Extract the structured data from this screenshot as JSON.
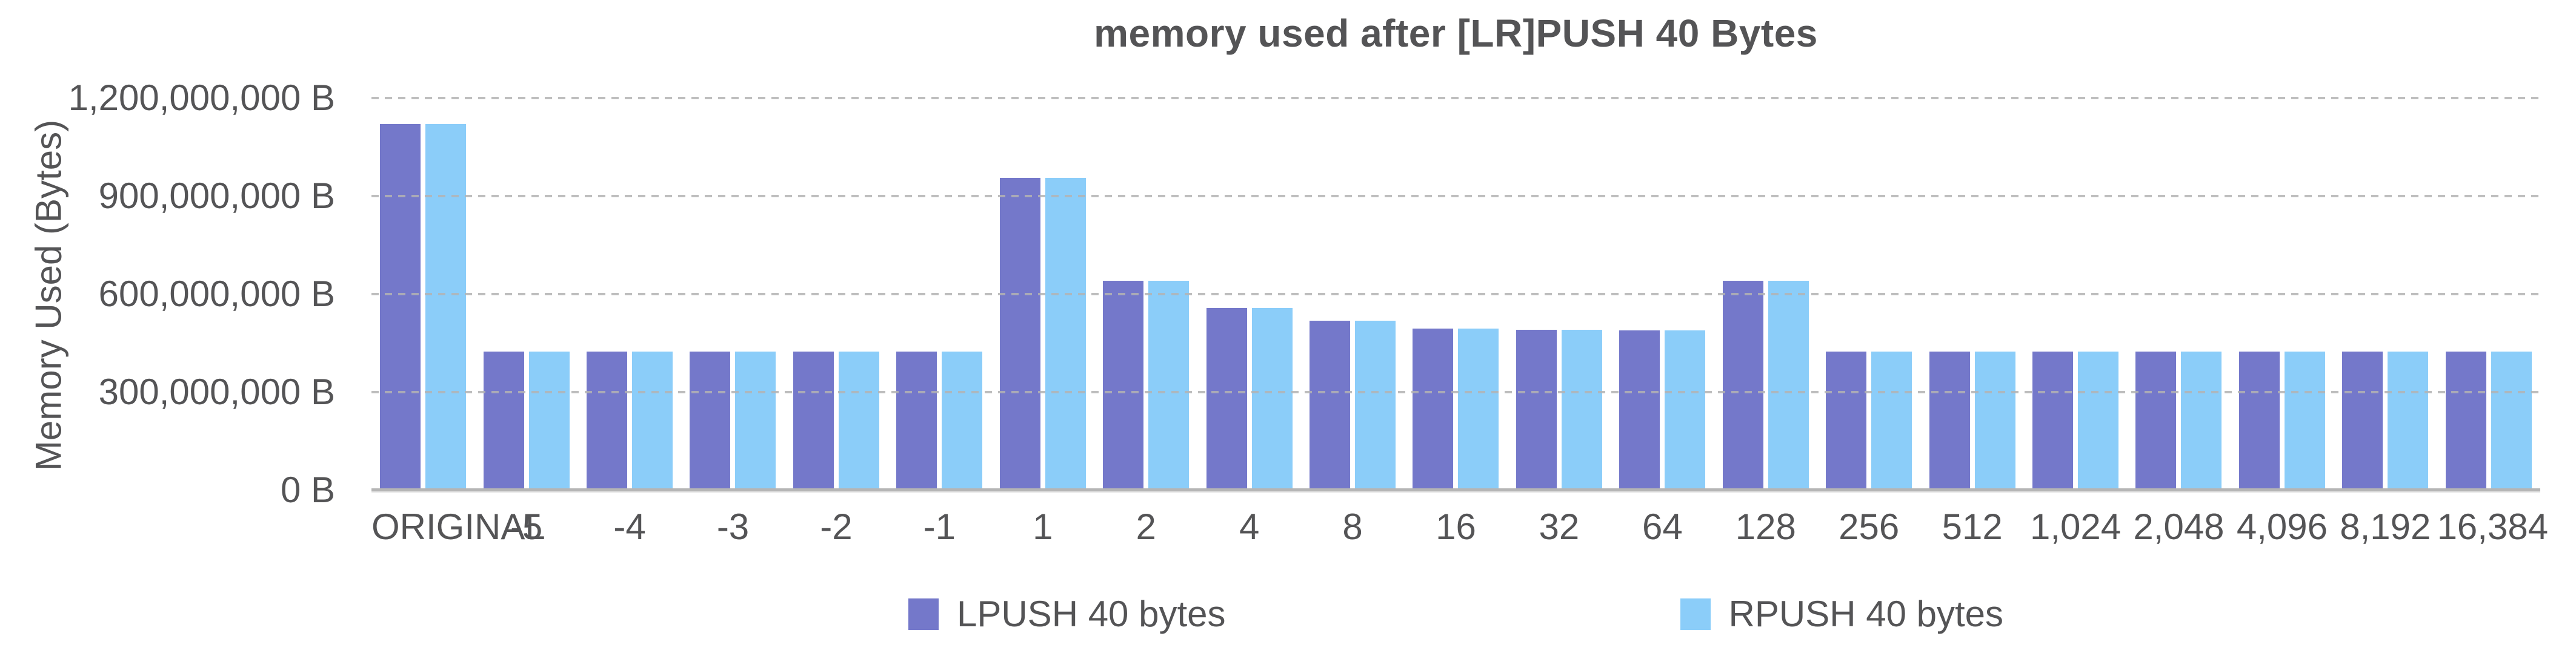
{
  "chart_data": {
    "type": "bar",
    "title": "memory used after [LR]PUSH 40 Bytes",
    "xlabel": "",
    "ylabel": "Memory Used (Bytes)",
    "ylim": [
      0,
      1200000000
    ],
    "grid": "dashed-horizontal",
    "legend_position": "bottom",
    "text_color": "#545456",
    "gridline_color": "#b3b3b3",
    "baseline_color": "#b5b5b5",
    "yticks": [
      {
        "value": 0,
        "label": "0 B"
      },
      {
        "value": 300000000,
        "label": "300,000,000 B"
      },
      {
        "value": 600000000,
        "label": "600,000,000 B"
      },
      {
        "value": 900000000,
        "label": "900,000,000 B"
      },
      {
        "value": 1200000000,
        "label": "1,200,000,000 B"
      }
    ],
    "categories": [
      "ORIGINAL",
      "-5",
      "-4",
      "-3",
      "-2",
      "-1",
      "1",
      "2",
      "4",
      "8",
      "16",
      "32",
      "64",
      "128",
      "256",
      "512",
      "1,024",
      "2,048",
      "4,096",
      "8,192",
      "16,384"
    ],
    "series": [
      {
        "name": "LPUSH 40 bytes",
        "color": "#7478ca",
        "values": [
          1121000000,
          425000000,
          425000000,
          425000000,
          425000000,
          425000000,
          956000000,
          640000000,
          558000000,
          518000000,
          495000000,
          490000000,
          488000000,
          640000000,
          425000000,
          425000000,
          425000000,
          425000000,
          425000000,
          425000000,
          425000000
        ]
      },
      {
        "name": "RPUSH 40 bytes",
        "color": "#8bcdf9",
        "values": [
          1121000000,
          425000000,
          425000000,
          425000000,
          425000000,
          425000000,
          956000000,
          640000000,
          558000000,
          518000000,
          495000000,
          490000000,
          488000000,
          640000000,
          425000000,
          425000000,
          425000000,
          425000000,
          425000000,
          425000000,
          425000000
        ]
      }
    ]
  }
}
